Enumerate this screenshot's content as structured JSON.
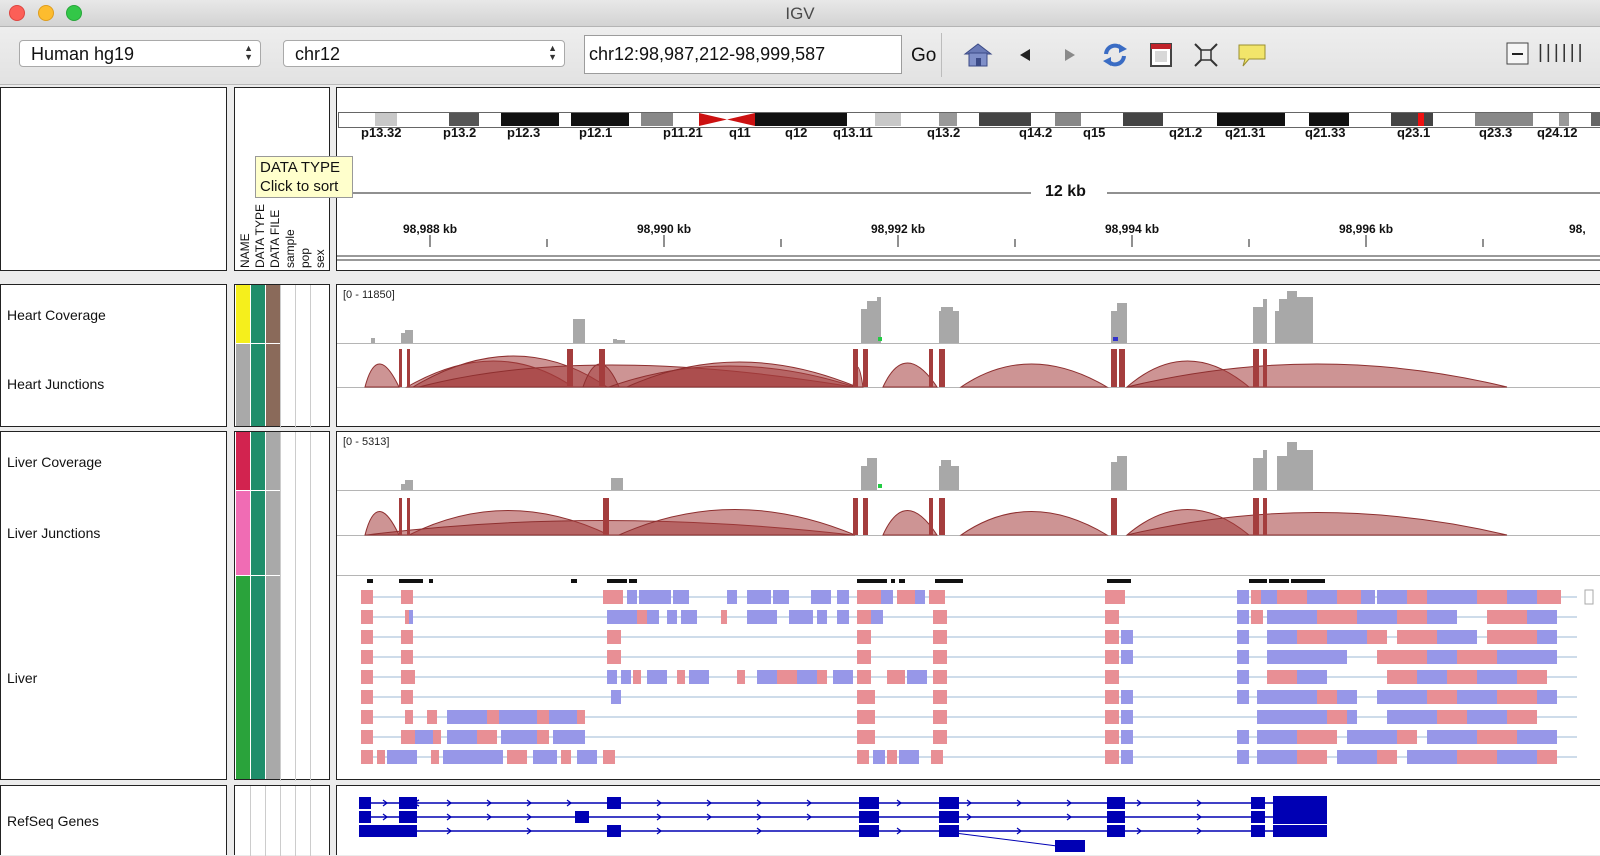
{
  "window": {
    "title": "IGV"
  },
  "toolbar": {
    "genome": "Human hg19",
    "chromosome": "chr12",
    "locus": "chr12:98,987,212-98,999,587",
    "go_label": "Go",
    "zoom_ticks": "||||||"
  },
  "attribute_columns": [
    "NAME",
    "DATA TYPE",
    "DATA FILE",
    "sample",
    "pop",
    "sex"
  ],
  "tooltip": {
    "line1": "DATA TYPE",
    "line2": "Click to sort"
  },
  "cytoband_labels": [
    "p13.32",
    "p13.2",
    "p12.3",
    "p12.1",
    "p11.21",
    "q11",
    "q12",
    "q13.11",
    "q13.2",
    "q14.2",
    "q15",
    "q21.2",
    "q21.31",
    "q21.33",
    "q23.1",
    "q23.3",
    "q24.12"
  ],
  "ruler": {
    "span_label": "12 kb",
    "tick_labels": [
      "98,988 kb",
      "98,990 kb",
      "98,992 kb",
      "98,994 kb",
      "98,996 kb",
      "98,"
    ]
  },
  "tracks": {
    "heart_coverage": {
      "name": "Heart Coverage",
      "range": "[0 - 11850]",
      "attr_color": "#f5ef1c"
    },
    "heart_junctions": {
      "name": "Heart Junctions",
      "attr_color": "#a9a9a9"
    },
    "liver_coverage": {
      "name": "Liver Coverage",
      "range": "[0 - 5313]",
      "attr_color": "#d2234f"
    },
    "liver_junctions": {
      "name": "Liver Junctions",
      "attr_color": "#f06cb4"
    },
    "liver": {
      "name": "Liver",
      "attr_color": "#2aa33b"
    },
    "refseq": {
      "name": "RefSeq Genes"
    }
  },
  "colors": {
    "junction": "#a43d3d",
    "coverage": "#a8a8a8",
    "read_plus": "#e88f95",
    "read_minus": "#9797e8",
    "gene": "#0000b4",
    "datatype_col": "#1f8e6b",
    "datafile_col": "#8a6a5a"
  }
}
